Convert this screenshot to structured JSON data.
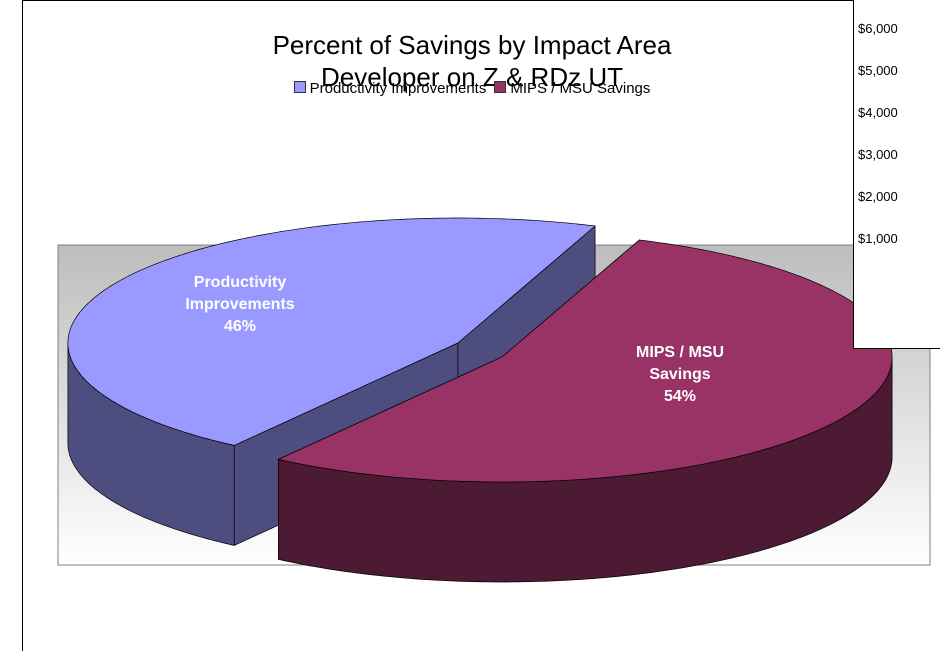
{
  "chart_data": [
    {
      "type": "pie",
      "title": "Percent of Savings by Impact Area",
      "subtitle": "Developer on Z & RDz UT",
      "categories": [
        "Productivity Improvements",
        "MIPS / MSU Savings"
      ],
      "values": [
        46,
        54
      ],
      "value_labels": [
        "46%",
        "54%"
      ],
      "colors": [
        "#9999ff",
        "#993366"
      ],
      "legend": "top"
    },
    {
      "type": "bar",
      "ylim": [
        1000,
        6000
      ],
      "yticks": [
        {
          "value": 1000,
          "label": "$1,000"
        },
        {
          "value": 2000,
          "label": "$2,000"
        },
        {
          "value": 3000,
          "label": "$3,000"
        },
        {
          "value": 4000,
          "label": "$4,000"
        },
        {
          "value": 5000,
          "label": "$5,000"
        },
        {
          "value": 6000,
          "label": "$6,000"
        }
      ]
    }
  ]
}
